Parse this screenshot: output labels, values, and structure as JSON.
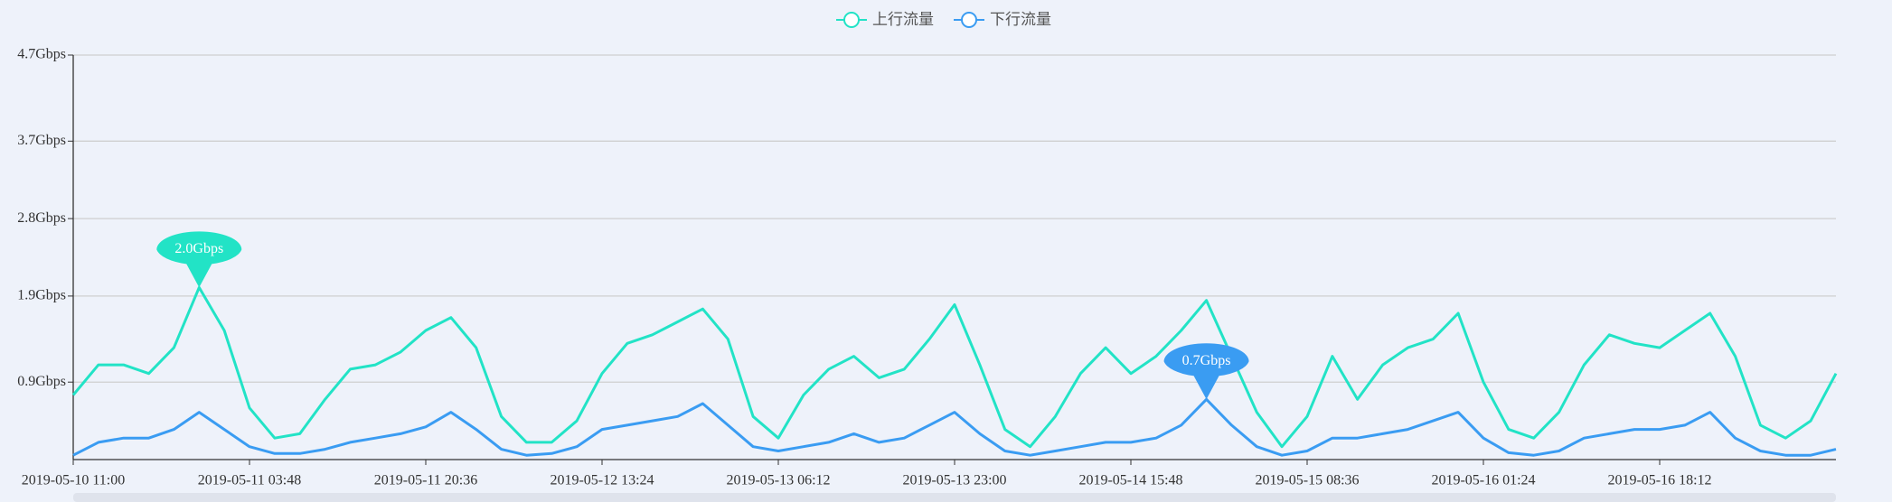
{
  "chart_data": {
    "type": "line",
    "categories": [
      "2019-05-10 11:00",
      null,
      null,
      null,
      null,
      null,
      null,
      "2019-05-11 03:48",
      null,
      null,
      null,
      null,
      null,
      null,
      "2019-05-11 20:36",
      null,
      null,
      null,
      null,
      null,
      null,
      "2019-05-12 13:24",
      null,
      null,
      null,
      null,
      null,
      null,
      "2019-05-13 06:12",
      null,
      null,
      null,
      null,
      null,
      null,
      "2019-05-13 23:00",
      null,
      null,
      null,
      null,
      null,
      null,
      "2019-05-14 15:48",
      null,
      null,
      null,
      null,
      null,
      null,
      "2019-05-15 08:36",
      null,
      null,
      null,
      null,
      null,
      null,
      "2019-05-16 01:24",
      null,
      null,
      null,
      null,
      null,
      null,
      "2019-05-16 18:12",
      null,
      null,
      null,
      null,
      null,
      null,
      null
    ],
    "series": [
      {
        "name": "上行流量",
        "color": "#22e3c6",
        "values": [
          0.75,
          1.1,
          1.1,
          1.0,
          1.3,
          2.0,
          1.5,
          0.6,
          0.25,
          0.3,
          0.7,
          1.05,
          1.1,
          1.25,
          1.5,
          1.65,
          1.3,
          0.5,
          0.2,
          0.2,
          0.45,
          1.0,
          1.35,
          1.45,
          1.6,
          1.75,
          1.4,
          0.5,
          0.25,
          0.75,
          1.05,
          1.2,
          0.95,
          1.05,
          1.4,
          1.8,
          1.1,
          0.35,
          0.15,
          0.5,
          1.0,
          1.3,
          1.0,
          1.2,
          1.5,
          1.85,
          1.2,
          0.55,
          0.15,
          0.5,
          1.2,
          0.7,
          1.1,
          1.3,
          1.4,
          1.7,
          0.9,
          0.35,
          0.25,
          0.55,
          1.1,
          1.45,
          1.35,
          1.3,
          1.5,
          1.7,
          1.2,
          0.4,
          0.25,
          0.45,
          1.0
        ],
        "value_labels": [
          null,
          null,
          null,
          null,
          null,
          "2.0Gbps",
          null,
          null,
          null,
          null,
          null,
          null,
          null,
          null,
          null,
          null,
          null,
          null,
          null,
          null,
          null,
          null,
          null,
          null,
          null,
          null,
          null,
          null,
          null,
          null,
          null,
          null,
          null,
          null,
          null,
          null,
          null,
          null,
          null,
          null,
          null,
          null,
          null,
          null,
          null,
          null,
          null,
          null,
          null,
          null,
          null,
          null,
          null,
          null,
          null,
          null,
          null,
          null,
          null,
          null,
          null,
          null,
          null,
          null,
          null,
          null,
          null,
          null,
          null,
          null,
          null
        ]
      },
      {
        "name": "下行流量",
        "color": "#3a9cf2",
        "values": [
          0.05,
          0.2,
          0.25,
          0.25,
          0.35,
          0.55,
          0.35,
          0.15,
          0.07,
          0.07,
          0.12,
          0.2,
          0.25,
          0.3,
          0.38,
          0.55,
          0.35,
          0.12,
          0.05,
          0.07,
          0.15,
          0.35,
          0.4,
          0.45,
          0.5,
          0.65,
          0.4,
          0.15,
          0.1,
          0.15,
          0.2,
          0.3,
          0.2,
          0.25,
          0.4,
          0.55,
          0.3,
          0.1,
          0.05,
          0.1,
          0.15,
          0.2,
          0.2,
          0.25,
          0.4,
          0.7,
          0.4,
          0.15,
          0.05,
          0.1,
          0.25,
          0.25,
          0.3,
          0.35,
          0.45,
          0.55,
          0.25,
          0.08,
          0.05,
          0.1,
          0.25,
          0.3,
          0.35,
          0.35,
          0.4,
          0.55,
          0.25,
          0.1,
          0.05,
          0.05,
          0.12
        ],
        "value_labels": [
          null,
          null,
          null,
          null,
          null,
          null,
          null,
          null,
          null,
          null,
          null,
          null,
          null,
          null,
          null,
          null,
          null,
          null,
          null,
          null,
          null,
          null,
          null,
          null,
          null,
          null,
          null,
          null,
          null,
          null,
          null,
          null,
          null,
          null,
          null,
          null,
          null,
          null,
          null,
          null,
          null,
          null,
          null,
          null,
          null,
          "0.7Gbps",
          null,
          null,
          null,
          null,
          null,
          null,
          null,
          null,
          null,
          null,
          null,
          null,
          null,
          null,
          null,
          null,
          null,
          null,
          null,
          null,
          null,
          null,
          null,
          null,
          null
        ]
      }
    ],
    "ylim": [
      0,
      4.7
    ],
    "yticks": [
      {
        "value": 0.9,
        "label": "0.9Gbps"
      },
      {
        "value": 1.9,
        "label": "1.9Gbps"
      },
      {
        "value": 2.8,
        "label": "2.8Gbps"
      },
      {
        "value": 3.7,
        "label": "3.7Gbps"
      },
      {
        "value": 4.7,
        "label": "4.7Gbps"
      }
    ],
    "grid": true,
    "legend": "top"
  }
}
